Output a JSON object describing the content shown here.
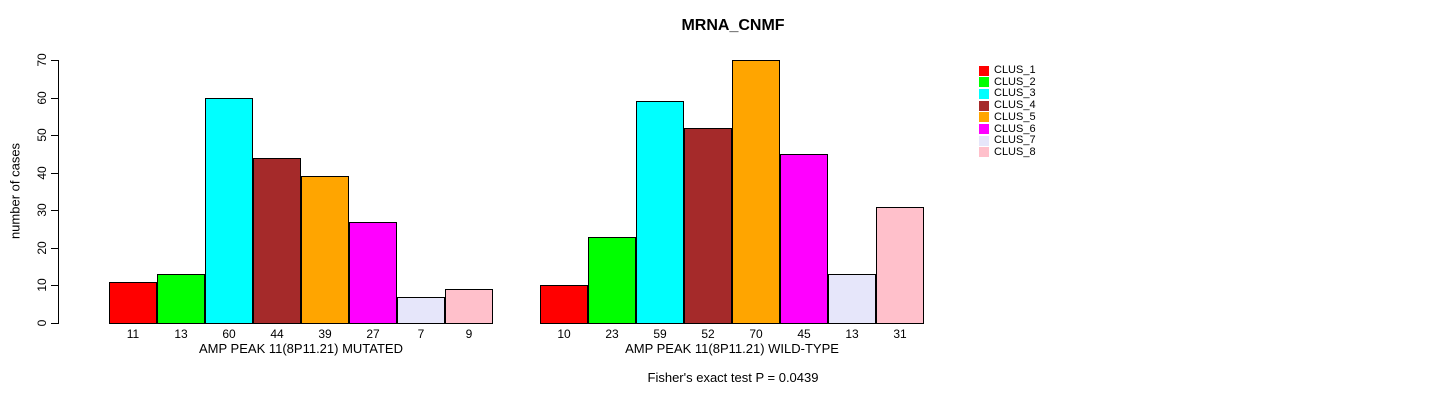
{
  "title": "MRNA_CNMF",
  "subtitle": "Fisher's exact test P = 0.0439",
  "ylabel": "number of cases",
  "legend": {
    "position": "right",
    "items": [
      {
        "label": "CLUS_1",
        "color": "#FF0000"
      },
      {
        "label": "CLUS_2",
        "color": "#00FF00"
      },
      {
        "label": "CLUS_3",
        "color": "#00FFFF"
      },
      {
        "label": "CLUS_4",
        "color": "#A52A2A"
      },
      {
        "label": "CLUS_5",
        "color": "#FFA500"
      },
      {
        "label": "CLUS_6",
        "color": "#FF00FF"
      },
      {
        "label": "CLUS_7",
        "color": "#E6E6FA"
      },
      {
        "label": "CLUS_8",
        "color": "#FFC0CB"
      }
    ]
  },
  "chart_data": [
    {
      "type": "bar",
      "xlabel": "AMP PEAK 11(8P11.21) MUTATED",
      "categories": [
        "CLUS_1",
        "CLUS_2",
        "CLUS_3",
        "CLUS_4",
        "CLUS_5",
        "CLUS_6",
        "CLUS_7",
        "CLUS_8"
      ],
      "values": [
        11,
        13,
        60,
        44,
        39,
        27,
        7,
        9
      ],
      "bar_labels": [
        "11",
        "13",
        "60",
        "44",
        "39",
        "27",
        "7",
        "9"
      ],
      "colors": [
        "#FF0000",
        "#00FF00",
        "#00FFFF",
        "#A52A2A",
        "#FFA500",
        "#FF00FF",
        "#E6E6FA",
        "#FFC0CB"
      ],
      "ylabel": "number of cases",
      "ylim": [
        0,
        70
      ],
      "yticks": [
        0,
        10,
        20,
        30,
        40,
        50,
        60,
        70
      ],
      "grid": false,
      "legend_position": "right"
    },
    {
      "type": "bar",
      "xlabel": "AMP PEAK 11(8P11.21) WILD-TYPE",
      "categories": [
        "CLUS_1",
        "CLUS_2",
        "CLUS_3",
        "CLUS_4",
        "CLUS_5",
        "CLUS_6",
        "CLUS_7",
        "CLUS_8"
      ],
      "values": [
        10,
        23,
        59,
        52,
        70,
        45,
        13,
        31
      ],
      "bar_labels": [
        "10",
        "23",
        "59",
        "52",
        "70",
        "45",
        "13",
        "31"
      ],
      "colors": [
        "#FF0000",
        "#00FF00",
        "#00FFFF",
        "#A52A2A",
        "#FFA500",
        "#FF00FF",
        "#E6E6FA",
        "#FFC0CB"
      ],
      "ylabel": "number of cases",
      "ylim": [
        0,
        70
      ],
      "yticks": [
        0,
        10,
        20,
        30,
        40,
        50,
        60,
        70
      ],
      "grid": false,
      "legend_position": "right"
    }
  ]
}
